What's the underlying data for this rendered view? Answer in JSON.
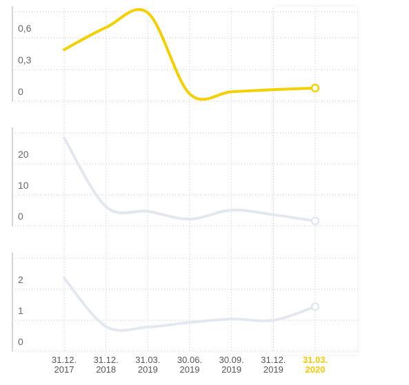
{
  "chart_data": [
    {
      "type": "line",
      "series": [
        {
          "color": "#f5d000",
          "values": [
            0.49,
            0.7,
            0.84,
            0.07,
            0.09,
            0.11,
            0.125
          ]
        }
      ],
      "ylim": [
        0,
        0.85
      ],
      "yticks": [
        0,
        {
          "value": 0.3,
          "label": "0,3"
        },
        {
          "value": 0.6,
          "label": "0,6"
        }
      ],
      "grid": true
    },
    {
      "type": "line",
      "series": [
        {
          "color": "#e3e8f0",
          "values": [
            28.4,
            6.2,
            4.7,
            2.2,
            5.1,
            3.6,
            1.6
          ]
        }
      ],
      "ylim": [
        0,
        30
      ],
      "yticks": [
        0,
        10,
        20
      ],
      "grid": true
    },
    {
      "type": "line",
      "series": [
        {
          "color": "#e3e8f0",
          "values": [
            2.36,
            0.8,
            0.78,
            0.93,
            1.04,
            1.0,
            1.44
          ]
        }
      ],
      "ylim": [
        0,
        3
      ],
      "yticks": [
        0,
        1,
        2
      ],
      "grid": true,
      "categories": [
        "31.12. 2017",
        "31.12. 2018",
        "31.03. 2019",
        "30.06. 2019",
        "30.09. 2019",
        "31.12. 2019",
        "31.03. 2020"
      ]
    }
  ]
}
